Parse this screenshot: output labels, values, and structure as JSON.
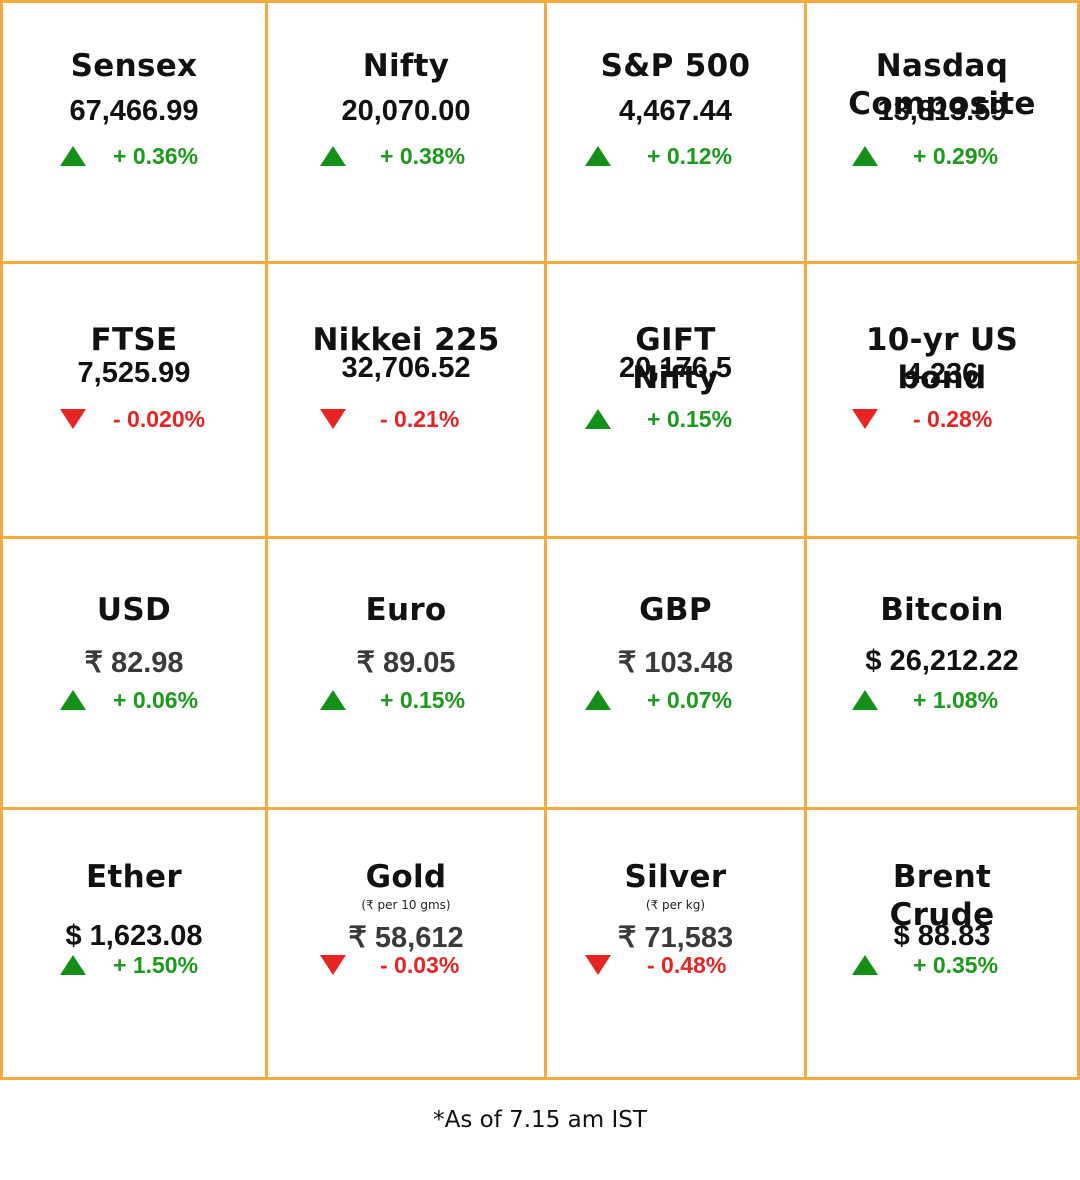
{
  "cards": [
    {
      "name_lines": [
        "Sensex"
      ],
      "value": "67,466.99",
      "change": "+ 0.36%",
      "direction": "up"
    },
    {
      "name_lines": [
        "Nifty"
      ],
      "value": "20,070.00",
      "change": "+ 0.38%",
      "direction": "up"
    },
    {
      "name_lines": [
        "S&P 500"
      ],
      "value": "4,467.44",
      "change": "+ 0.12%",
      "direction": "up"
    },
    {
      "name_lines": [
        "Nasdaq",
        "Composite"
      ],
      "value": "13,813.59",
      "change": "+ 0.29%",
      "direction": "up"
    },
    {
      "name_lines": [
        "FTSE"
      ],
      "value": "7,525.99",
      "change": "- 0.020%",
      "direction": "down"
    },
    {
      "name_lines": [
        "Nikkei 225"
      ],
      "value": "32,706.52",
      "change": "- 0.21%",
      "direction": "down"
    },
    {
      "name_lines": [
        "GIFT",
        "Nifty"
      ],
      "value": "20,176.5",
      "change": "+ 0.15%",
      "direction": "up"
    },
    {
      "name_lines": [
        "10-yr US",
        "bond"
      ],
      "value": "4.236",
      "change": "- 0.28%",
      "direction": "down"
    },
    {
      "name_lines": [
        "USD"
      ],
      "value": "₹ 82.98",
      "change": "+ 0.06%",
      "direction": "up"
    },
    {
      "name_lines": [
        "Euro"
      ],
      "value": "₹ 89.05",
      "change": "+ 0.15%",
      "direction": "up"
    },
    {
      "name_lines": [
        "GBP"
      ],
      "value": "₹ 103.48",
      "change": "+ 0.07%",
      "direction": "up"
    },
    {
      "name_lines": [
        "Bitcoin"
      ],
      "value": "$ 26,212.22",
      "change": "+ 1.08%",
      "direction": "up"
    },
    {
      "name_lines": [
        "Ether"
      ],
      "value": "$ 1,623.08",
      "change": "+ 1.50%",
      "direction": "up"
    },
    {
      "name_lines": [
        "Gold"
      ],
      "unit": "(₹ per 10 gms)",
      "value": "₹ 58,612",
      "change": "- 0.03%",
      "direction": "down"
    },
    {
      "name_lines": [
        "Silver"
      ],
      "unit": "(₹ per kg)",
      "value": "₹ 71,583",
      "change": "- 0.48%",
      "direction": "down"
    },
    {
      "name_lines": [
        "Brent",
        "Crude"
      ],
      "value": "$ 88.83",
      "change": "+ 0.35%",
      "direction": "up"
    }
  ],
  "footnote": "*As of 7.15 am IST",
  "colors": {
    "border": "#f4aa44",
    "up": "#1b9a1b",
    "down": "#e52525"
  }
}
